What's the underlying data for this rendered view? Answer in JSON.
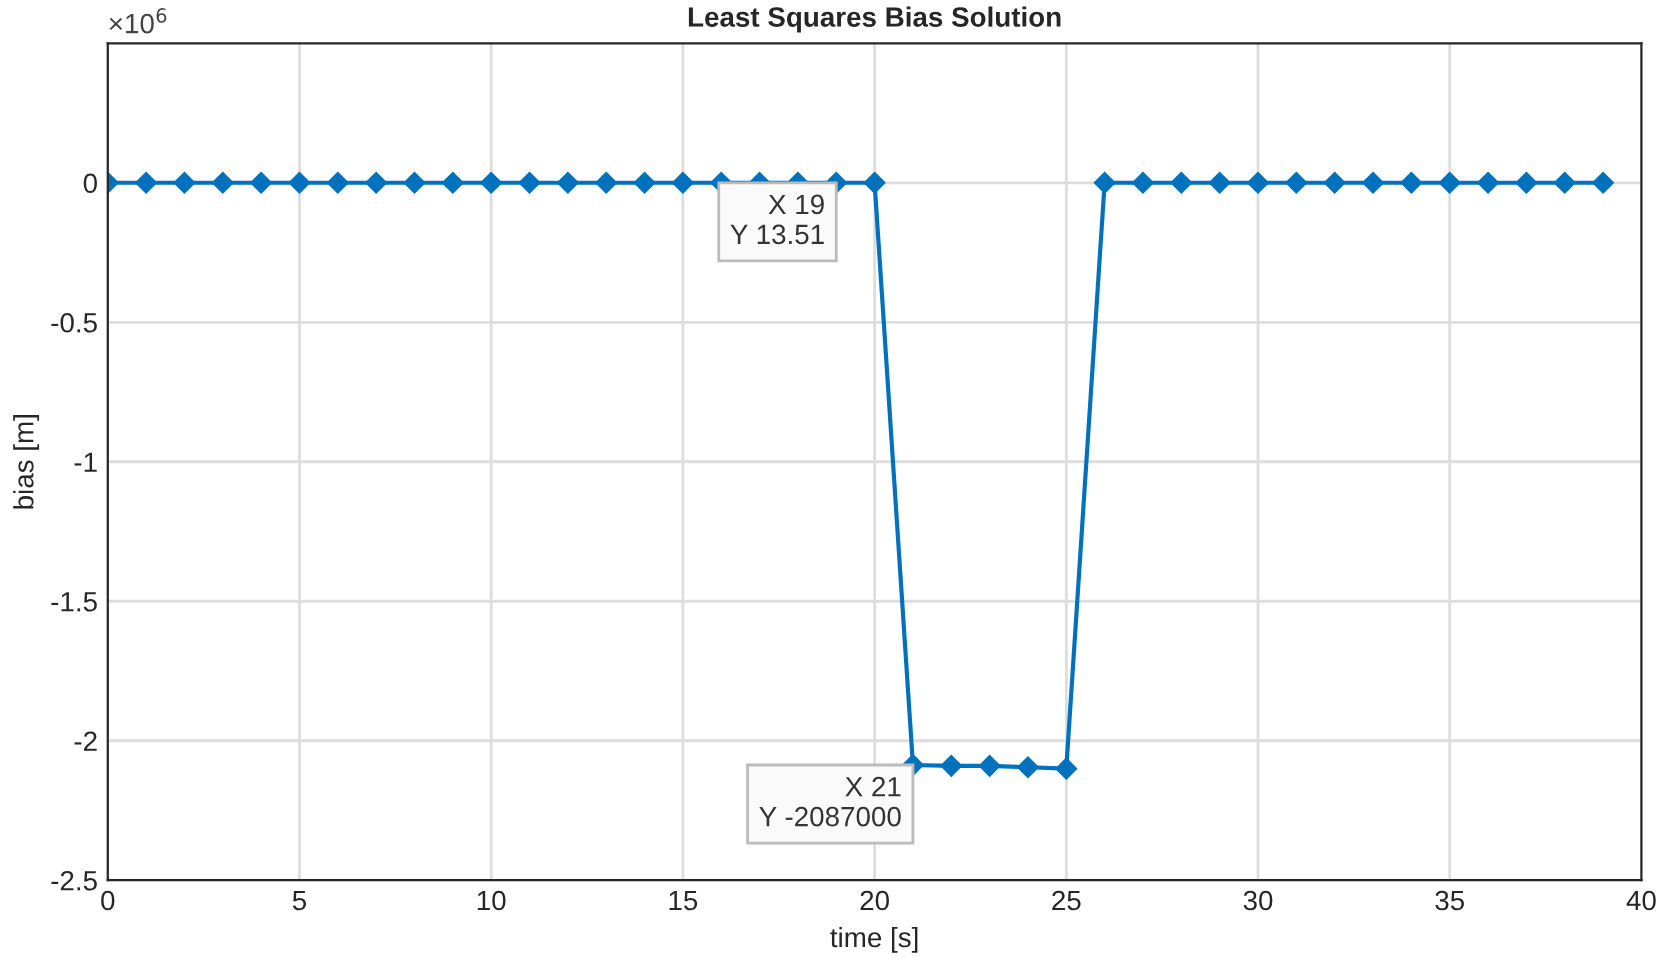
{
  "chart_data": {
    "type": "line",
    "title": "Least Squares Bias Solution",
    "xlabel": "time [s]",
    "ylabel": "bias [m]",
    "x": [
      0,
      1,
      2,
      3,
      4,
      5,
      6,
      7,
      8,
      9,
      10,
      11,
      12,
      13,
      14,
      15,
      16,
      17,
      18,
      19,
      20,
      21,
      22,
      23,
      24,
      25,
      26,
      27,
      28,
      29,
      30,
      31,
      32,
      33,
      34,
      35,
      36,
      37,
      38,
      39
    ],
    "series": [
      {
        "color": "#0072bd",
        "values": [
          0,
          0,
          0,
          0,
          0,
          0,
          0,
          0,
          0,
          0,
          0,
          0,
          0,
          0,
          0,
          0,
          0,
          0,
          0,
          0,
          0,
          -2.087,
          -2.09,
          -2.09,
          -2.095,
          -2.1,
          0,
          0,
          0,
          0,
          0,
          0,
          0,
          0,
          0,
          0,
          0,
          0,
          0,
          0
        ]
      }
    ],
    "xlim": [
      0,
      40
    ],
    "xticks": [
      0,
      5,
      10,
      15,
      20,
      25,
      30,
      35,
      40
    ],
    "ylim": [
      -2.5,
      0.5
    ],
    "yticks": [
      -2.5,
      -2,
      -1.5,
      -1,
      -0.5,
      0
    ],
    "annotations": [
      "×10$^{6}$",
      {
        "text": "X 19\nY 13.51",
        "x": 19,
        "y": 0
      },
      {
        "text": "X 21\nY -2087000",
        "x": 21,
        "y": -2.087
      }
    ],
    "grid": true,
    "marker": "diamond",
    "line_style": "solid"
  }
}
